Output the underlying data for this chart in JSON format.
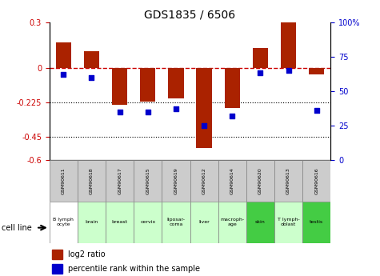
{
  "title": "GDS1835 / 6506",
  "samples": [
    "GSM90611",
    "GSM90618",
    "GSM90617",
    "GSM90615",
    "GSM90619",
    "GSM90612",
    "GSM90614",
    "GSM90620",
    "GSM90613",
    "GSM90616"
  ],
  "cell_lines": [
    "B lymph\nocyte",
    "brain",
    "breast",
    "cervix",
    "liposar-\ncoma",
    "liver",
    "macroph-\nage",
    "skin",
    "T lymph-\noblast",
    "testis"
  ],
  "cell_line_colors": [
    "#ffffff",
    "#ccffcc",
    "#ccffcc",
    "#ccffcc",
    "#ccffcc",
    "#ccffcc",
    "#ccffcc",
    "#44cc44",
    "#ccffcc",
    "#44cc44"
  ],
  "log2_ratio": [
    0.17,
    0.11,
    -0.24,
    -0.22,
    -0.2,
    -0.52,
    -0.26,
    0.13,
    0.3,
    -0.04
  ],
  "percentile_rank": [
    62,
    60,
    35,
    35,
    37,
    25,
    32,
    63,
    65,
    36
  ],
  "ylim_left": [
    -0.6,
    0.3
  ],
  "yticks_left": [
    0.3,
    0.0,
    -0.225,
    -0.45,
    -0.6
  ],
  "ytick_labels_left": [
    "0.3",
    "0",
    "-0.225",
    "-0.45",
    "-0.6"
  ],
  "ylim_right": [
    0,
    100
  ],
  "yticks_right": [
    100,
    75,
    50,
    25,
    0
  ],
  "ytick_labels_right": [
    "100%",
    "75",
    "50",
    "25",
    "0"
  ],
  "bar_color": "#aa2200",
  "dot_color": "#0000cc",
  "zero_line_color": "#cc0000",
  "hline_color": "#000000",
  "bar_width": 0.55
}
